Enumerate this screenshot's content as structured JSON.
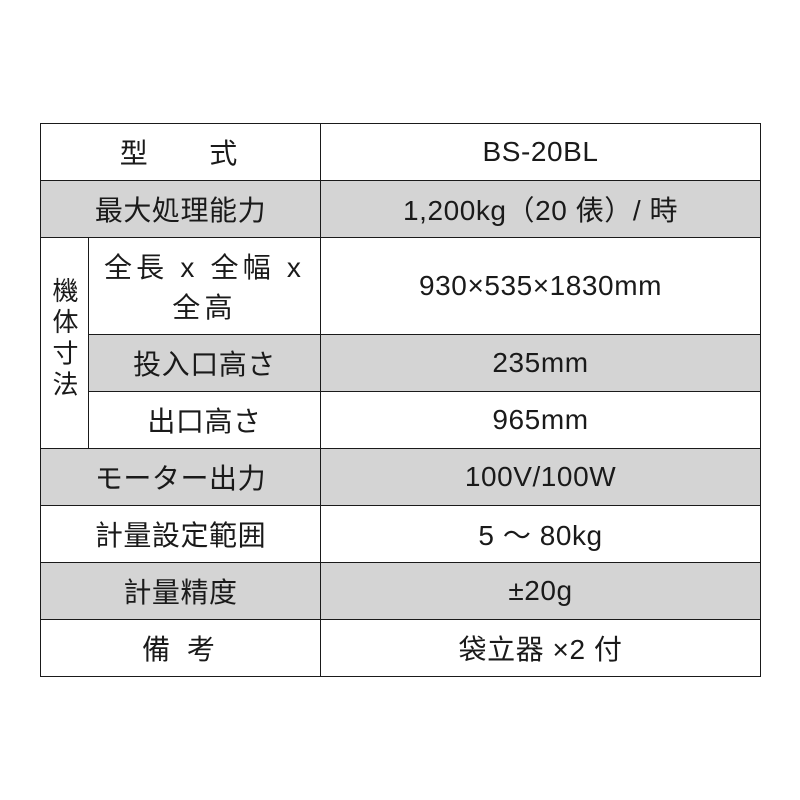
{
  "table": {
    "border_color": "#1a1a1a",
    "text_color": "#1a1a1a",
    "shade_color": "#d4d4d4",
    "background_color": "#ffffff",
    "font_size_pt": 21,
    "vertical_label": "機体寸法",
    "rows": [
      {
        "label": "型　式",
        "value": "BS-20BL",
        "shaded": false
      },
      {
        "label": "最大処理能力",
        "value": "1,200kg（20 俵）/ 時",
        "shaded": true
      },
      {
        "label": "全長 x 全幅 x 全高",
        "value": "930×535×1830mm",
        "shaded": false,
        "group": true
      },
      {
        "label": "投入口高さ",
        "value": "235mm",
        "shaded": true,
        "group": true
      },
      {
        "label": "出口高さ",
        "value": "965mm",
        "shaded": false,
        "group": true
      },
      {
        "label": "モーター出力",
        "value": "100V/100W",
        "shaded": true
      },
      {
        "label": "計量設定範囲",
        "value": "5 〜 80kg",
        "shaded": false
      },
      {
        "label": "計量精度",
        "value": "±20g",
        "shaded": true
      },
      {
        "label": "備考",
        "value": "袋立器 ×2 付",
        "shaded": false
      }
    ]
  }
}
